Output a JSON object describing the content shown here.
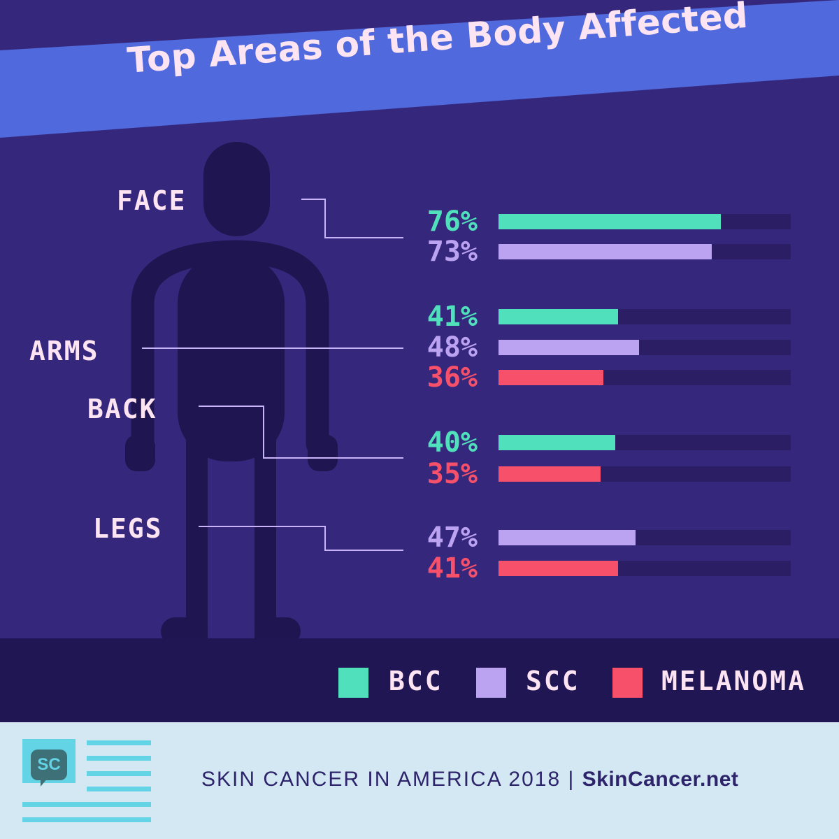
{
  "title": "Top Areas of the Body Affected",
  "colors": {
    "background": "#35287c",
    "banner": "#5069dd",
    "silhouette": "#1f1550",
    "connector": "#c7b4f8",
    "track": "#2b1e64",
    "legend_band": "#201654",
    "label_text": "#fde4f2",
    "footer": "#d3e8f2",
    "footer_accent": "#63d4e6",
    "footer_text": "#2d246b"
  },
  "chart_data": {
    "type": "bar",
    "orientation": "horizontal",
    "xlim": [
      0,
      100
    ],
    "unit": "%",
    "legend_placement": "bottom-right",
    "series": [
      {
        "name": "BCC",
        "color": "#50e0bb"
      },
      {
        "name": "SCC",
        "color": "#bca3f2"
      },
      {
        "name": "MELANOMA",
        "color": "#f7506a"
      }
    ],
    "groups": [
      {
        "region": "FACE",
        "bars": [
          {
            "series": "BCC",
            "value": 76,
            "label": "76%"
          },
          {
            "series": "SCC",
            "value": 73,
            "label": "73%"
          }
        ]
      },
      {
        "region": "ARMS",
        "bars": [
          {
            "series": "BCC",
            "value": 41,
            "label": "41%"
          },
          {
            "series": "SCC",
            "value": 48,
            "label": "48%"
          },
          {
            "series": "MELANOMA",
            "value": 36,
            "label": "36%"
          }
        ]
      },
      {
        "region": "BACK",
        "bars": [
          {
            "series": "BCC",
            "value": 40,
            "label": "40%"
          },
          {
            "series": "MELANOMA",
            "value": 35,
            "label": "35%"
          }
        ]
      },
      {
        "region": "LEGS",
        "bars": [
          {
            "series": "SCC",
            "value": 47,
            "label": "47%"
          },
          {
            "series": "MELANOMA",
            "value": 41,
            "label": "41%"
          }
        ]
      }
    ]
  },
  "legend": {
    "items": [
      {
        "label": "BCC",
        "color": "#50e0bb"
      },
      {
        "label": "SCC",
        "color": "#bca3f2"
      },
      {
        "label": "MELANOMA",
        "color": "#f7506a"
      }
    ]
  },
  "footer": {
    "logo_text": "SC",
    "caption": "SKIN CANCER IN AMERICA 2018 |",
    "brand": "SkinCancer.net"
  }
}
